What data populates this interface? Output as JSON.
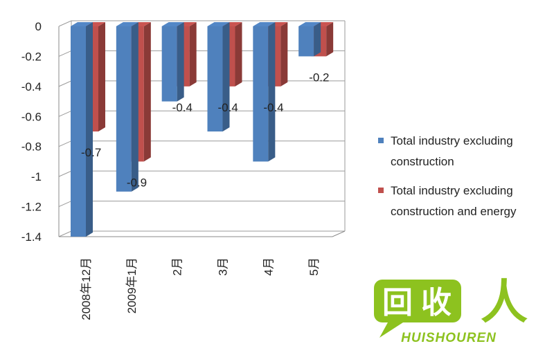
{
  "chart_data": {
    "type": "bar",
    "categories": [
      "2008年12月",
      "2009年1月",
      "2月",
      "3月",
      "4月",
      "5月"
    ],
    "series": [
      {
        "name": "Total industry excluding construction",
        "values": [
          -1.4,
          -1.1,
          -0.5,
          -0.7,
          -0.9,
          -0.2
        ],
        "color": "#4f81bd"
      },
      {
        "name": "Total industry excluding construction and energy",
        "values": [
          -0.7,
          -0.9,
          -0.4,
          -0.4,
          -0.4,
          -0.2
        ],
        "color": "#c0504d"
      }
    ],
    "data_labels": [
      "-0.7",
      "-0.9",
      "-0.4",
      "-0.4",
      "-0.4",
      "-0.2"
    ],
    "yticks": [
      "0",
      "-0.2",
      "-0.4",
      "-0.6",
      "-0.8",
      "-1",
      "-1.2",
      "-1.4"
    ],
    "ylim": [
      -1.4,
      0
    ],
    "grid": true,
    "legend": {
      "position": "right",
      "entries": [
        [
          "Total industry excluding",
          "construction"
        ],
        [
          "Total industry excluding",
          "construction and energy"
        ]
      ]
    },
    "title": "",
    "xlabel": "",
    "ylabel": ""
  },
  "watermark": {
    "text": "HUISHOUREN",
    "logo_chars": "回收人",
    "color": "#8dc21f"
  }
}
